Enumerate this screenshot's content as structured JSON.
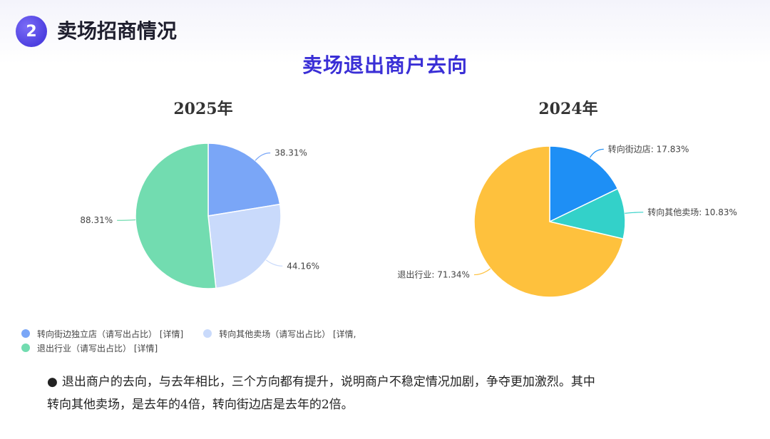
{
  "header": {
    "section_number": "2",
    "section_title": "卖场招商情况"
  },
  "main_title": "卖场退出商户去向",
  "chart_data": [
    {
      "type": "pie",
      "title": "2025年",
      "slices": [
        {
          "label": "38.31%",
          "value": 38.31,
          "color": "#7aa6f7",
          "legend": "转向街边独立店（请写出占比）[详情]"
        },
        {
          "label": "44.16%",
          "value": 44.16,
          "color": "#c9dafb",
          "legend": "转向其他卖场（请写出占比）[详情,"
        },
        {
          "label": "88.31%",
          "value": 88.31,
          "color": "#72dcb0",
          "legend": "退出行业（请写出占比）[详情]"
        }
      ]
    },
    {
      "type": "pie",
      "title": "2024年",
      "slices": [
        {
          "label": "转向街边店: 17.83%",
          "value": 17.83,
          "color": "#1e8ff5"
        },
        {
          "label": "转向其他卖场: 10.83%",
          "value": 10.83,
          "color": "#33d1c9"
        },
        {
          "label": "退出行业: 71.34%",
          "value": 71.34,
          "color": "#fec13d"
        }
      ]
    }
  ],
  "legend": [
    {
      "label": "转向街边独立店（请写出占比） [详情]",
      "color": "#7aa6f7"
    },
    {
      "label": "转向其他卖场（请写出占比） [详情,",
      "color": "#c9dafb"
    },
    {
      "label": "退出行业（请写出占比） [详情]",
      "color": "#72dcb0"
    }
  ],
  "summary": {
    "bullet": "●",
    "line1": "退出商户的去向，与去年相比，三个方向都有提升，说明商户不稳定情况加剧，争夺更加激烈。其中",
    "line2": "转向其他卖场，是去年的4倍，转向街边店是去年的2倍。"
  }
}
